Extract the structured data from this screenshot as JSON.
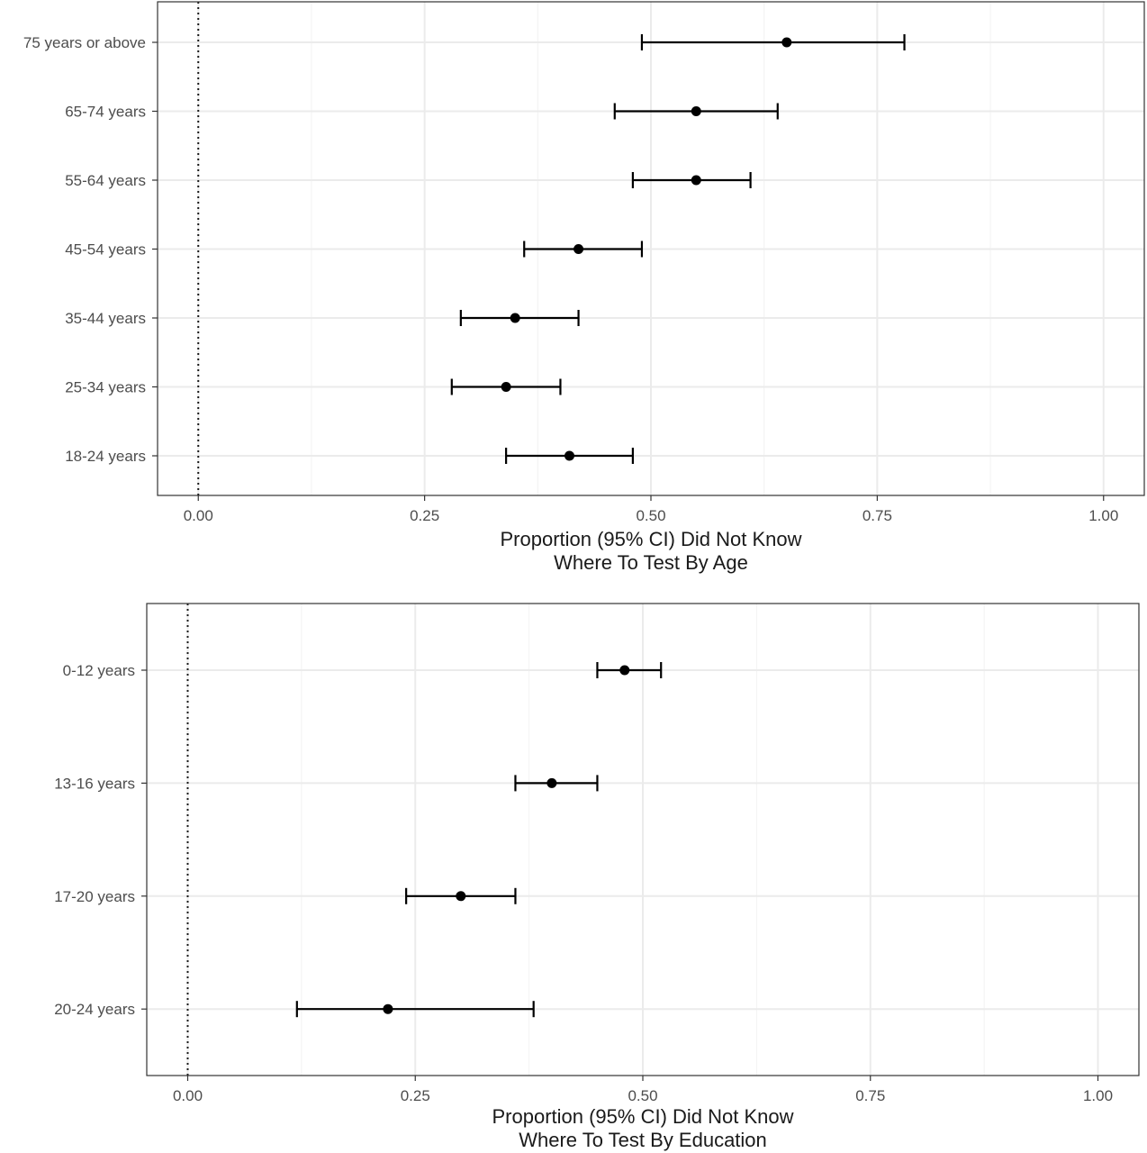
{
  "chart_data": [
    {
      "type": "errorbar",
      "xlabel": [
        "Proportion (95% CI) Did Not Know",
        "Where To Test By Age"
      ],
      "xlim": [
        -0.1,
        2.1
      ],
      "ticks": [
        0,
        0.25,
        0.5,
        0.75,
        1.0
      ],
      "tick_labels": [
        "0.00",
        "0.25",
        "0.50",
        "0.75",
        "1.00"
      ],
      "reference_line": 0,
      "grid": true,
      "categories": [
        "75 years or above",
        "65-74 years",
        "55-64 years",
        "45-54 years",
        "35-44 years",
        "25-34 years",
        "18-24 years"
      ],
      "estimates": [
        0.65,
        0.55,
        0.55,
        0.42,
        0.35,
        0.34,
        0.41
      ],
      "lower": [
        0.49,
        0.46,
        0.48,
        0.36,
        0.29,
        0.28,
        0.34
      ],
      "upper": [
        0.78,
        0.64,
        0.61,
        0.49,
        0.42,
        0.4,
        0.48
      ]
    },
    {
      "type": "errorbar",
      "xlabel": [
        "Proportion (95% CI) Did Not Know",
        "Where To Test By Education"
      ],
      "xlim": [
        -0.1,
        2.1
      ],
      "ticks": [
        0,
        0.25,
        0.5,
        0.75,
        1.0
      ],
      "tick_labels": [
        "0.00",
        "0.25",
        "0.50",
        "0.75",
        "1.00"
      ],
      "reference_line": 0,
      "grid": true,
      "categories": [
        "0-12 years",
        "13-16 years",
        "17-20 years",
        "20-24 years"
      ],
      "estimates": [
        0.48,
        0.4,
        0.3,
        0.22
      ],
      "lower": [
        0.45,
        0.36,
        0.24,
        0.12
      ],
      "upper": [
        0.52,
        0.45,
        0.36,
        0.38
      ]
    }
  ]
}
